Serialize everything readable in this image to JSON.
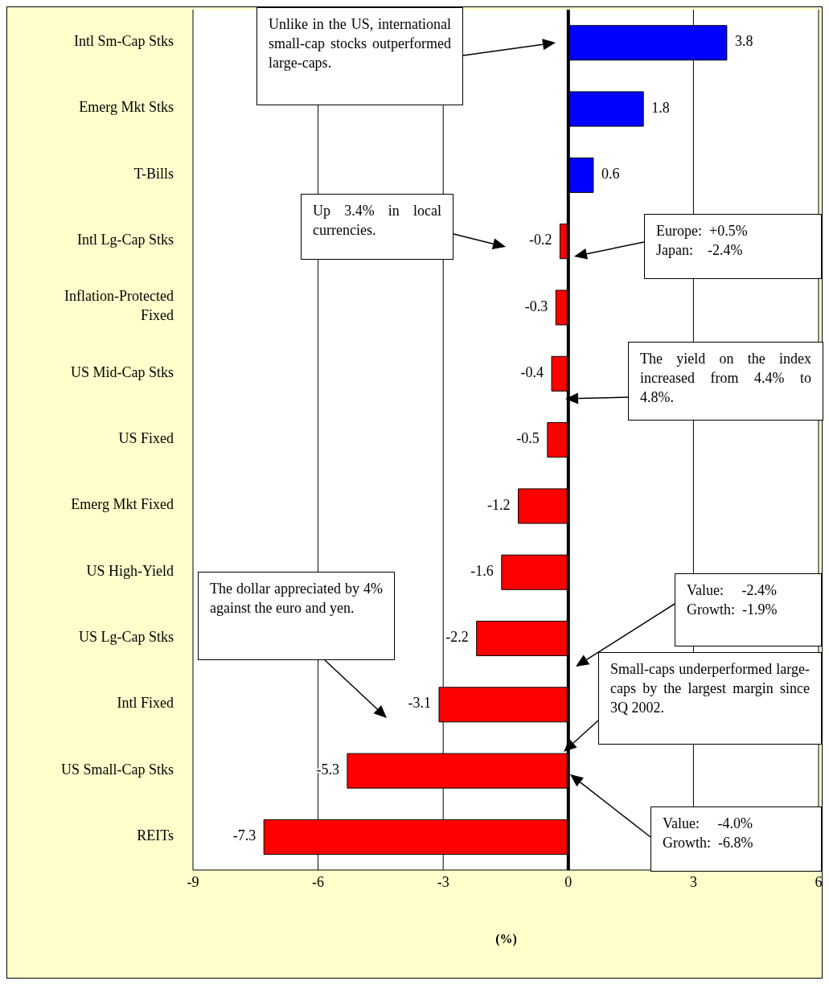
{
  "chart_data": {
    "type": "bar",
    "orientation": "horizontal",
    "xlabel": "(%)",
    "categories": [
      "Intl Sm-Cap Stks",
      "Emerg Mkt Stks",
      "T-Bills",
      "Intl Lg-Cap Stks",
      "Inflation-Protected Fixed",
      "US Mid-Cap Stks",
      "US Fixed",
      "Emerg Mkt Fixed",
      "US High-Yield",
      "US Lg-Cap Stks",
      "Intl Fixed",
      "US Small-Cap Stks",
      "REITs"
    ],
    "values": [
      3.8,
      1.8,
      0.6,
      -0.2,
      -0.3,
      -0.4,
      -0.5,
      -1.2,
      -1.6,
      -2.2,
      -3.1,
      -5.3,
      -7.3
    ],
    "colors": [
      "#0000ff",
      "#0000ff",
      "#0000ff",
      "#ff0000",
      "#ff0000",
      "#ff0000",
      "#ff0000",
      "#ff0000",
      "#ff0000",
      "#ff0000",
      "#ff0000",
      "#ff0000",
      "#ff0000"
    ],
    "xlim": [
      -9,
      6
    ],
    "xticks": [
      -9,
      -6,
      -3,
      0,
      3,
      6
    ],
    "grid": "x",
    "legend": false,
    "data_labels": true,
    "annotations": [
      "Unlike in the US, international small-cap stocks outperformed large-caps.",
      "Up 3.4% in local currencies.",
      "Europe:  +0.5%\nJapan:    -2.4%",
      "The yield on the index increased from 4.4% to 4.8%.",
      "The dollar appreciated by 4% against the euro and yen.",
      "Value:     -2.4%\nGrowth:  -1.9%",
      "Small-caps underperformed large-caps by the largest margin since 3Q 2002.",
      "Value:     -4.0%\nGrowth:  -6.8%"
    ]
  }
}
